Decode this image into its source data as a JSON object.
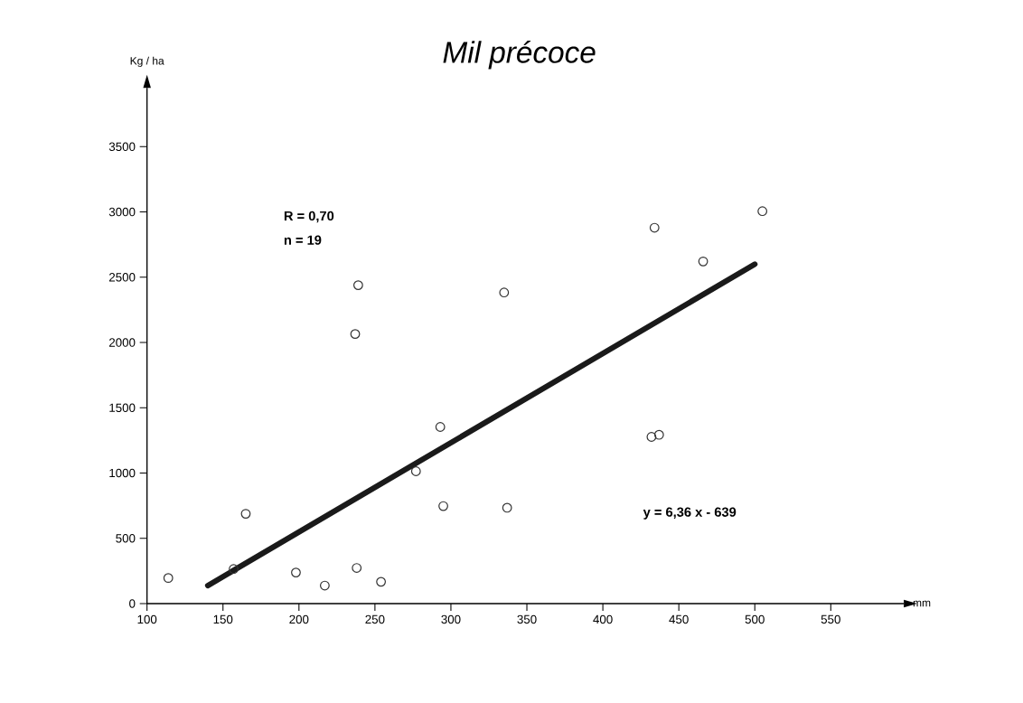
{
  "chart_data": {
    "type": "scatter",
    "title": "Mil précoce",
    "xlabel": "mm",
    "ylabel": "Kg / ha",
    "xlim": [
      100,
      598
    ],
    "ylim": [
      0,
      3950
    ],
    "xticks": [
      100,
      150,
      200,
      250,
      300,
      350,
      400,
      450,
      500,
      550
    ],
    "yticks": [
      0,
      500,
      1000,
      1500,
      2000,
      2500,
      3000,
      3500
    ],
    "marker": "circle",
    "series": [
      {
        "color": "#333333",
        "x": [
          114,
          157,
          165,
          198,
          217,
          238,
          237,
          239,
          254,
          277,
          293,
          295,
          335,
          337,
          434,
          505,
          466,
          432,
          437
        ],
        "values": [
          196,
          265,
          688,
          238,
          138,
          273,
          2065,
          2439,
          167,
          1014,
          1353,
          747,
          2383,
          734,
          2879,
          3006,
          2621,
          1277,
          1293
        ]
      },
      {
        "type": "line",
        "color": "#1a1a1a",
        "marker": "none",
        "x": [
          140,
          500
        ],
        "values": [
          138,
          2600
        ]
      }
    ],
    "annotations": [
      "R = 0,70",
      "n = 19",
      "y = 6,36 x - 639"
    ]
  }
}
